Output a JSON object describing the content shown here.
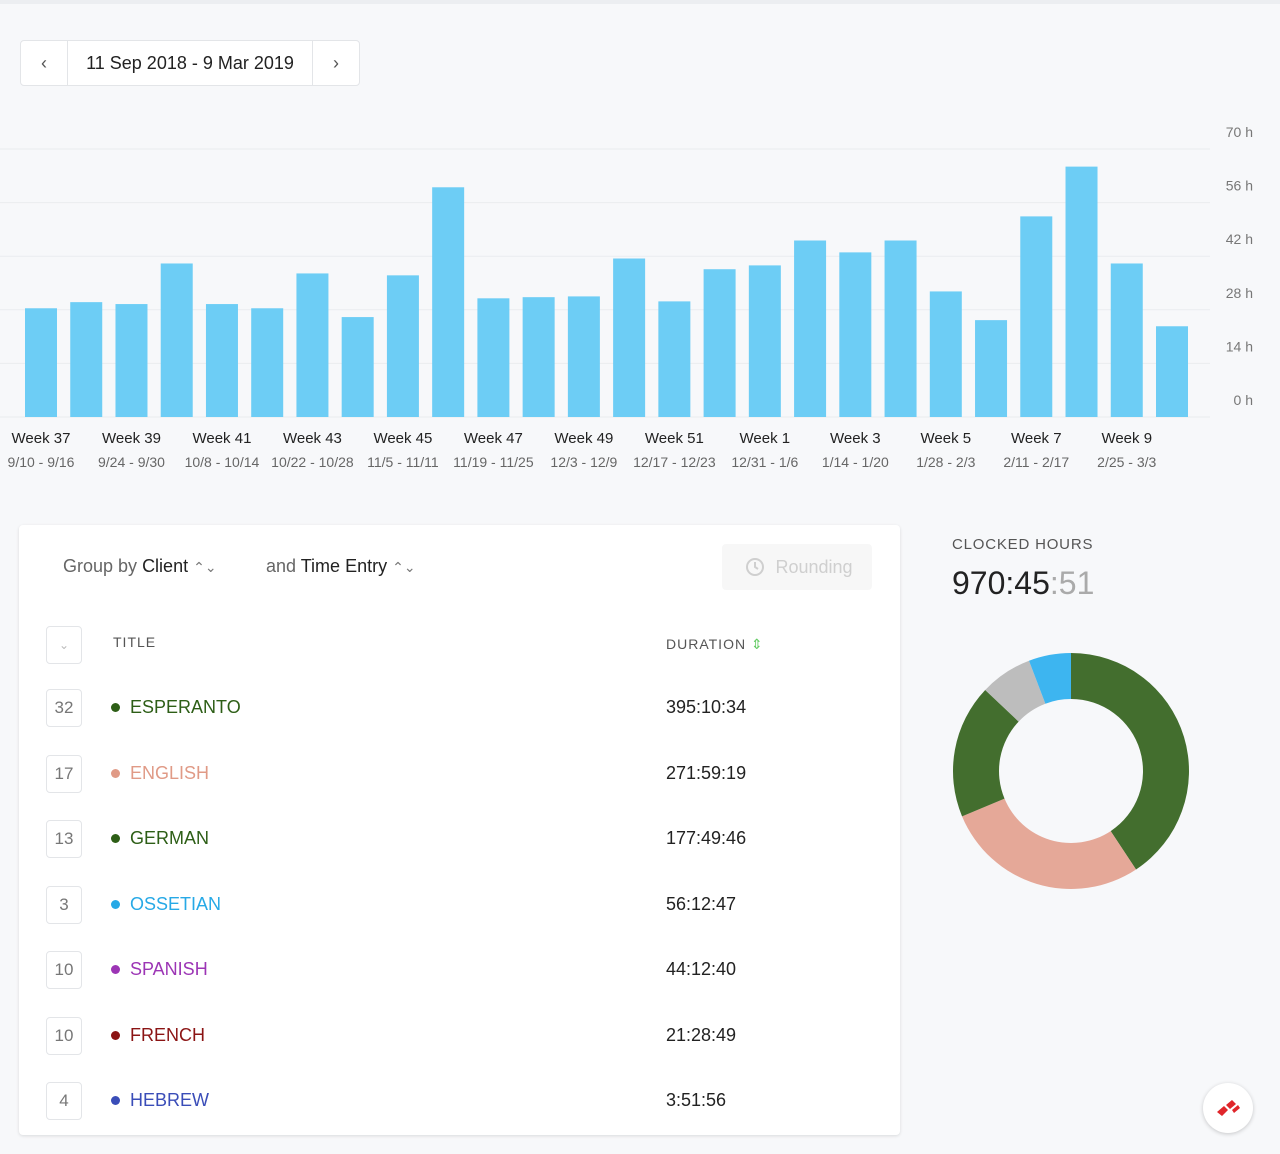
{
  "date_range": "11 Sep 2018 - 9 Mar 2019",
  "chart_data": [
    {
      "type": "bar",
      "color": "#6dcdf5",
      "categories": [
        "Week 37",
        null,
        "Week 39",
        null,
        "Week 41",
        null,
        "Week 43",
        null,
        "Week 45",
        null,
        "Week 47",
        null,
        "Week 49",
        null,
        "Week 51",
        null,
        "Week 1",
        null,
        "Week 3",
        null,
        "Week 5",
        null,
        "Week 7",
        null,
        "Week 9",
        null
      ],
      "date_ranges": [
        "9/10 - 9/16",
        null,
        "9/24 - 9/30",
        null,
        "10/8 - 10/14",
        null,
        "10/22 - 10/28",
        null,
        "11/5 - 11/11",
        null,
        "11/19 - 11/25",
        null,
        "12/3 - 12/9",
        null,
        "12/17 - 12/23",
        null,
        "12/31 - 1/6",
        null,
        "1/14 - 1/20",
        null,
        "1/28 - 2/3",
        null,
        "2/11 - 2/17",
        null,
        "2/25 - 3/3",
        null
      ],
      "values": [
        28.4,
        30.0,
        29.5,
        40.1,
        29.5,
        28.4,
        37.5,
        26.1,
        37.0,
        60.0,
        31.0,
        31.3,
        31.5,
        41.4,
        30.2,
        38.6,
        39.6,
        46.1,
        43.0,
        46.1,
        32.8,
        25.3,
        52.4,
        65.4,
        40.1,
        23.7
      ],
      "ylim": [
        0,
        70
      ],
      "yticks": [
        {
          "value": 0,
          "label": "0 h"
        },
        {
          "value": 14,
          "label": "14 h"
        },
        {
          "value": 28,
          "label": "28 h"
        },
        {
          "value": 42,
          "label": "42 h"
        },
        {
          "value": 56,
          "label": "56 h"
        },
        {
          "value": 70,
          "label": "70 h"
        }
      ],
      "grid": true
    },
    {
      "type": "pie",
      "values": [
        395.18,
        271.99,
        177.83,
        69.56,
        56.21
      ],
      "colors": [
        "#436e2e",
        "#e5a898",
        "#436e2e",
        "#bdbdbd",
        "#3db5f0"
      ]
    }
  ],
  "group_by": {
    "prefix": "Group by",
    "first": "Client",
    "and": "and",
    "second": "Time Entry",
    "rounding": "Rounding"
  },
  "table": {
    "headers": {
      "title": "TITLE",
      "duration": "DURATION"
    },
    "rows": [
      {
        "count": "32",
        "name": "ESPERANTO",
        "color": "#2d5e16",
        "duration": "395:10:34"
      },
      {
        "count": "17",
        "name": "ENGLISH",
        "color": "#e09a86",
        "duration": "271:59:19"
      },
      {
        "count": "13",
        "name": "GERMAN",
        "color": "#2d5e16",
        "duration": "177:49:46"
      },
      {
        "count": "3",
        "name": "OSSETIAN",
        "color": "#27a9e6",
        "duration": "56:12:47"
      },
      {
        "count": "10",
        "name": "SPANISH",
        "color": "#9c35b5",
        "duration": "44:12:40"
      },
      {
        "count": "10",
        "name": "FRENCH",
        "color": "#8b1414",
        "duration": "21:28:49"
      },
      {
        "count": "4",
        "name": "HEBREW",
        "color": "#3a4db8",
        "duration": "3:51:56"
      }
    ]
  },
  "clocked_hours": {
    "label": "CLOCKED HOURS",
    "main": "970:45",
    "seconds": ":51"
  }
}
